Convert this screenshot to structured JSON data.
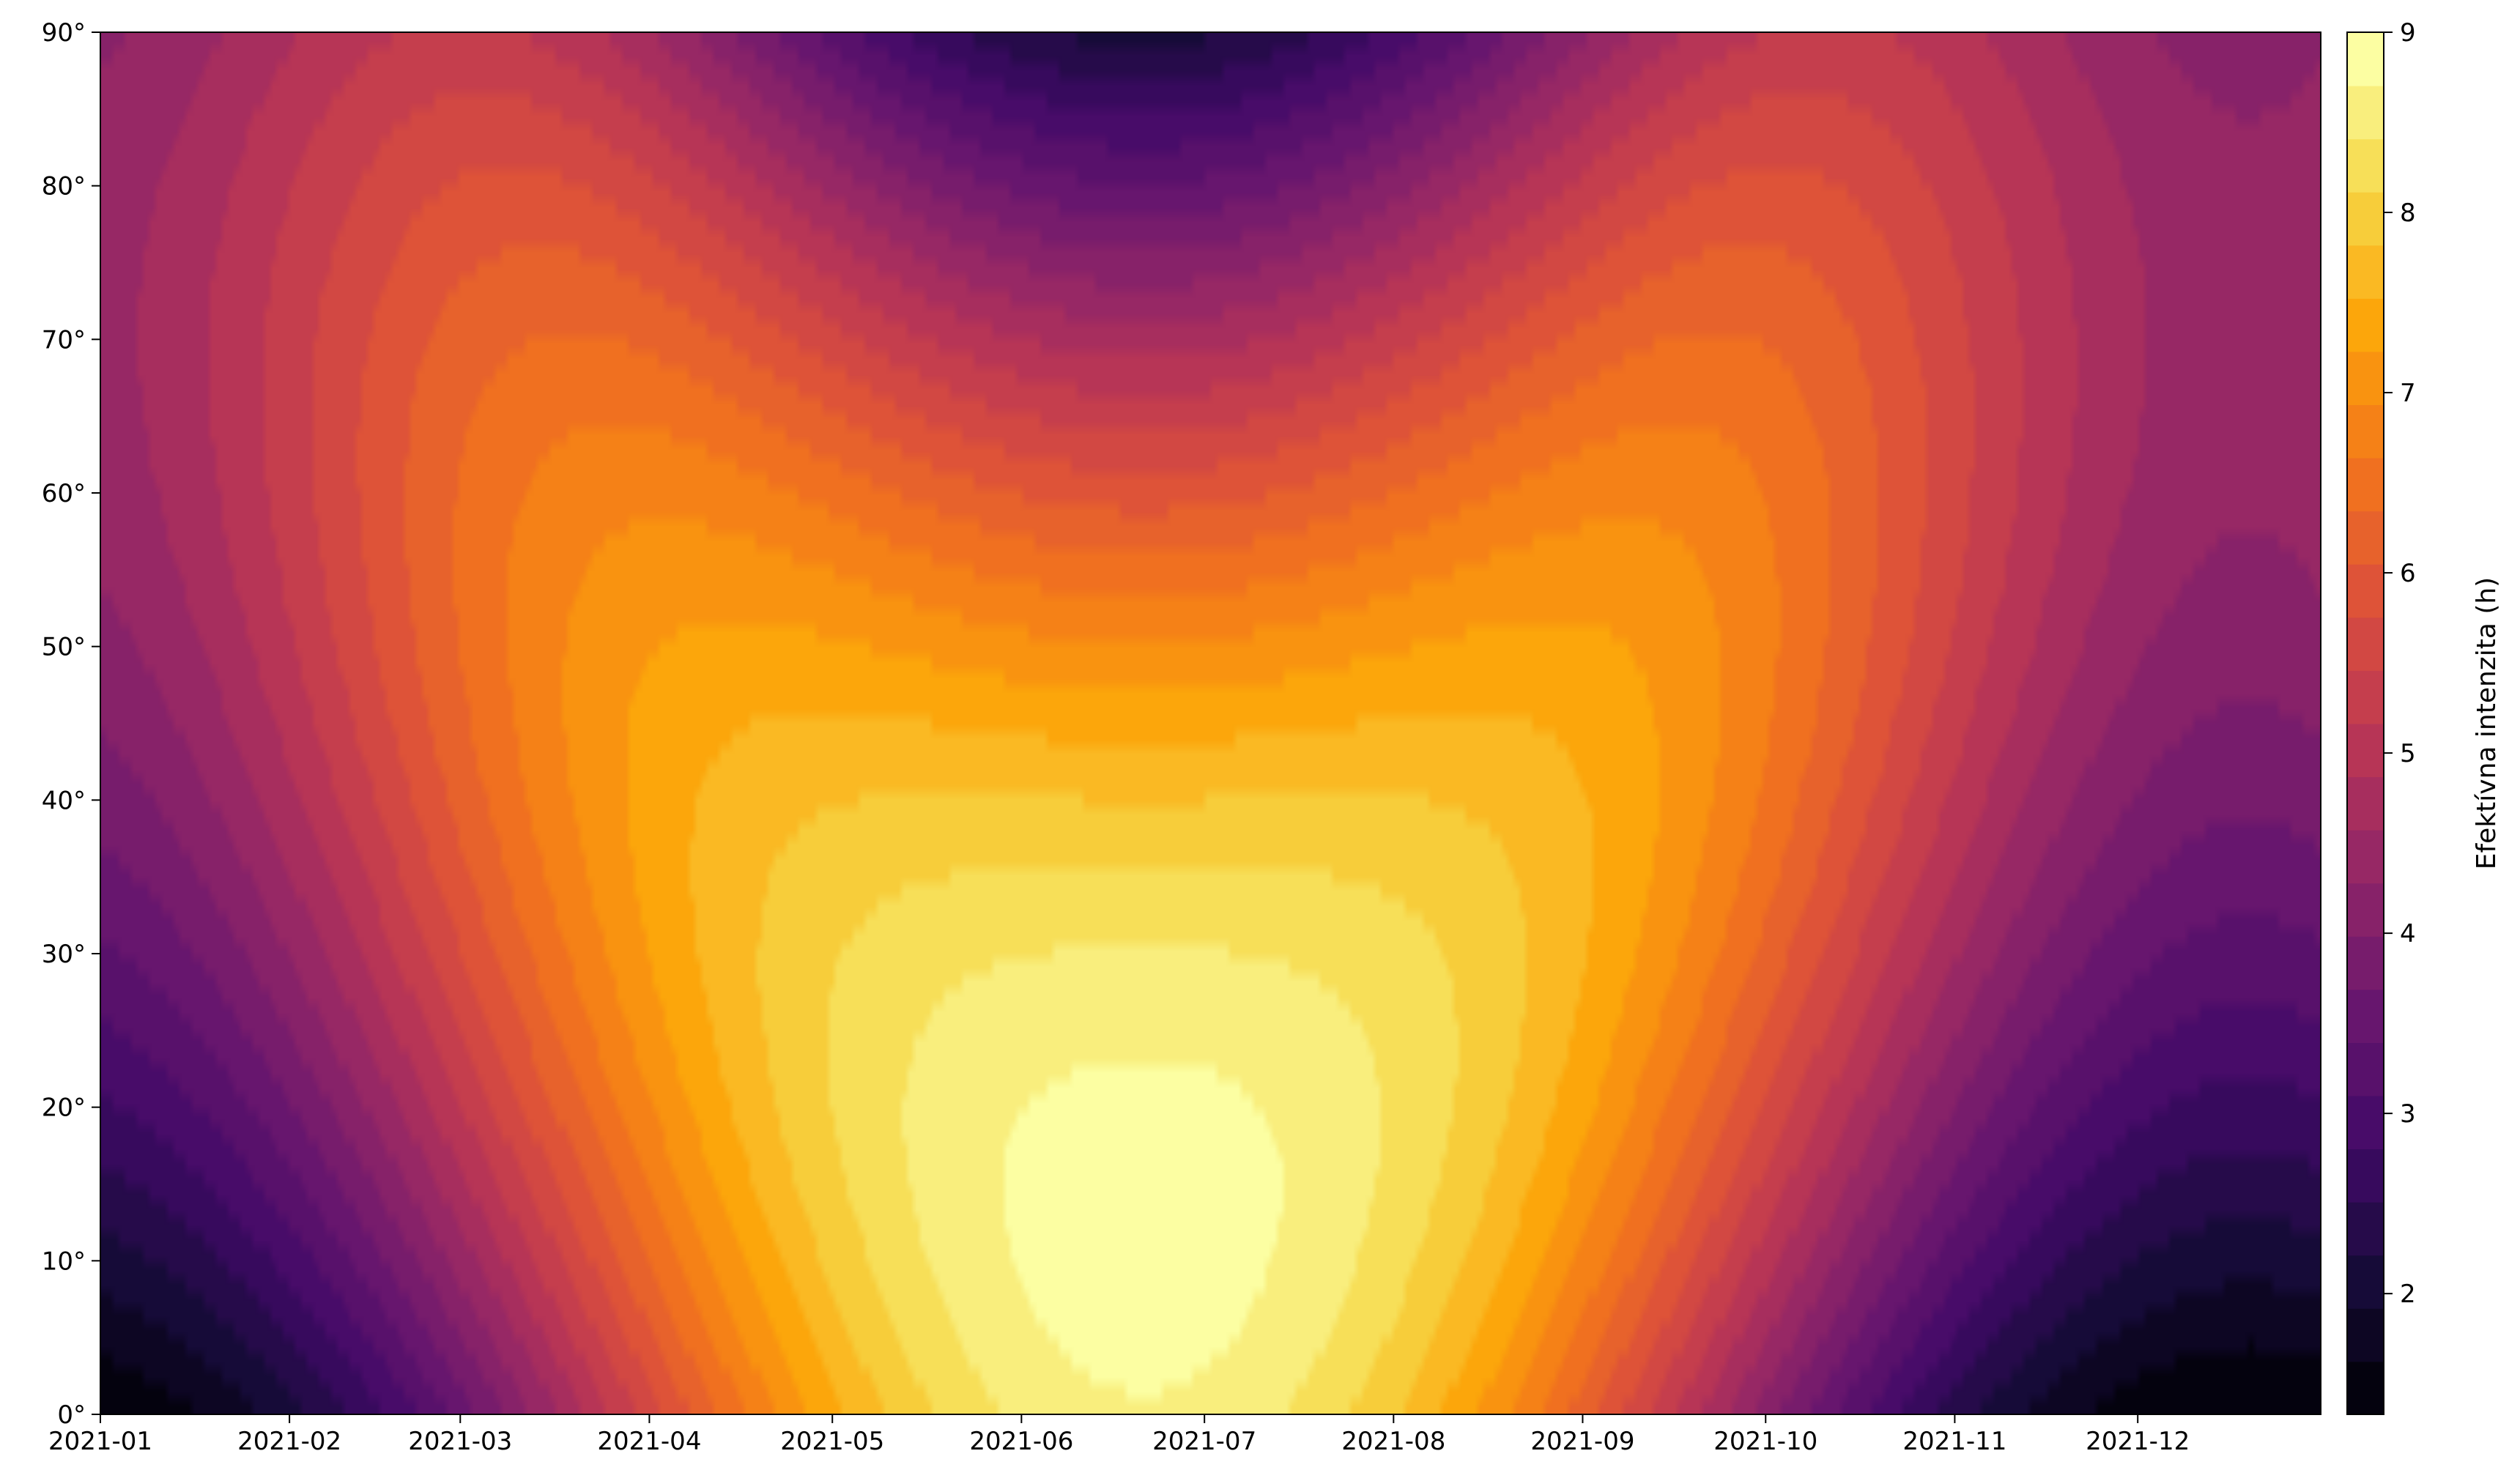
{
  "chart_data": {
    "type": "heatmap",
    "subtype": "filled-contour",
    "title": "",
    "xlabel": "",
    "ylabel": "",
    "colormap": "inferno",
    "x_tick_labels": [
      "2021-01",
      "2021-02",
      "2021-03",
      "2021-04",
      "2021-05",
      "2021-06",
      "2021-07",
      "2021-08",
      "2021-09",
      "2021-10",
      "2021-11",
      "2021-12"
    ],
    "x_tick_dates": [
      "2021-01-01",
      "2021-02-01",
      "2021-03-01",
      "2021-04-01",
      "2021-05-01",
      "2021-06-01",
      "2021-07-01",
      "2021-08-01",
      "2021-09-01",
      "2021-10-01",
      "2021-11-01",
      "2021-12-01"
    ],
    "xlim": [
      "2021-01-01",
      "2021-12-31"
    ],
    "y_tick_values": [
      0,
      10,
      20,
      30,
      40,
      50,
      60,
      70,
      80,
      90
    ],
    "y_tick_labels": [
      "0°",
      "10°",
      "20°",
      "30°",
      "40°",
      "50°",
      "60°",
      "70°",
      "80°",
      "90°"
    ],
    "ylim": [
      0,
      90
    ],
    "colorbar": {
      "label": "Efektívna intenzita (h)",
      "range": [
        1.33,
        9.0
      ],
      "tick_values": [
        2,
        3,
        4,
        5,
        6,
        7,
        8,
        9
      ],
      "tick_labels": [
        "2",
        "3",
        "4",
        "5",
        "6",
        "7",
        "8",
        "9"
      ]
    },
    "grid": false,
    "legend": "none"
  }
}
